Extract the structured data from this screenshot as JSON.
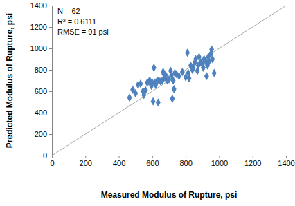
{
  "chart_data": {
    "type": "scatter",
    "x_label": "Measured Modulus of Rupture, psi",
    "y_label": "Predicted Modulus of Rupture, psi",
    "annotations": [
      "N = 62",
      "R² =  0.6111",
      "RMSE = 91 psi"
    ],
    "x": [
      464,
      483,
      500,
      515,
      530,
      545,
      550,
      560,
      570,
      580,
      585,
      595,
      600,
      605,
      610,
      615,
      620,
      630,
      635,
      640,
      650,
      660,
      665,
      670,
      675,
      680,
      690,
      700,
      710,
      715,
      720,
      725,
      730,
      735,
      745,
      760,
      780,
      800,
      810,
      815,
      820,
      830,
      840,
      845,
      855,
      860,
      870,
      875,
      880,
      890,
      900,
      905,
      910,
      920,
      925,
      930,
      935,
      940,
      950,
      955,
      960,
      970
    ],
    "values": [
      540,
      615,
      580,
      660,
      670,
      600,
      565,
      610,
      680,
      690,
      700,
      650,
      680,
      505,
      820,
      680,
      660,
      700,
      495,
      700,
      690,
      700,
      780,
      760,
      730,
      750,
      700,
      710,
      790,
      750,
      530,
      700,
      620,
      770,
      760,
      740,
      780,
      730,
      960,
      770,
      720,
      840,
      800,
      820,
      870,
      900,
      790,
      840,
      920,
      870,
      850,
      820,
      900,
      880,
      740,
      840,
      920,
      880,
      950,
      990,
      900,
      770
    ],
    "color": "#4f81bd",
    "marker": "diamond",
    "xlim": [
      0,
      1400
    ],
    "xticks": [
      0,
      200,
      400,
      600,
      800,
      1000,
      1200,
      1400
    ],
    "ylim": [
      0,
      1400
    ],
    "yticks": [
      0,
      200,
      400,
      600,
      800,
      1000,
      1200,
      1400
    ],
    "grid": false
  }
}
